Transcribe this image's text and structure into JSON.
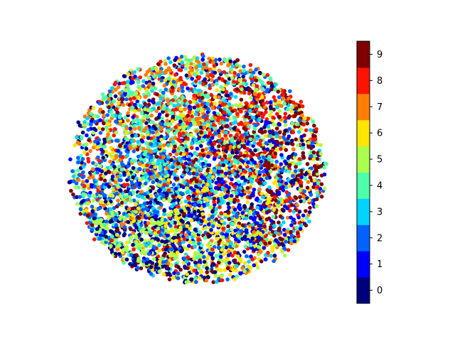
{
  "chart_data": {
    "type": "scatter",
    "title": "",
    "xlabel": "",
    "ylabel": "",
    "axes_visible": false,
    "point_count_approx": 5000,
    "shape": "roughly circular cloud of t-SNE style embedded points, classes heavily intermixed",
    "class_tendencies": [
      {
        "class": 0,
        "region": "bottom and left edges"
      },
      {
        "class": 1,
        "region": "spread throughout, denser center-right"
      },
      {
        "class": 2,
        "region": "left half and lower-left"
      },
      {
        "class": 3,
        "region": "spread throughout"
      },
      {
        "class": 4,
        "region": "left and top"
      },
      {
        "class": 5,
        "region": "lower-left and top"
      },
      {
        "class": 6,
        "region": "lower-middle and right"
      },
      {
        "class": 7,
        "region": "upper-left and right"
      },
      {
        "class": 8,
        "region": "upper-middle and right"
      },
      {
        "class": 9,
        "region": "upper-right"
      }
    ],
    "colorbar": {
      "cmap": "jet",
      "discrete_levels": 10,
      "ticks": [
        "0",
        "1",
        "2",
        "3",
        "4",
        "5",
        "6",
        "7",
        "8",
        "9"
      ],
      "colors": [
        "#00007f",
        "#0000ff",
        "#0063ff",
        "#00d4ff",
        "#4dffa9",
        "#a9ff4d",
        "#ffe500",
        "#ff7d00",
        "#ff1300",
        "#7f0000"
      ]
    }
  }
}
